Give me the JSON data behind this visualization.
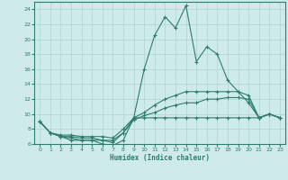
{
  "xlabel": "Humidex (Indice chaleur)",
  "x": [
    0,
    1,
    2,
    3,
    4,
    5,
    6,
    7,
    8,
    9,
    10,
    11,
    12,
    13,
    14,
    15,
    16,
    17,
    18,
    19,
    20,
    21,
    22,
    23
  ],
  "line1": [
    9.0,
    7.5,
    7.0,
    6.5,
    6.5,
    6.5,
    6.0,
    5.8,
    6.5,
    9.5,
    16.0,
    20.5,
    23.0,
    21.5,
    24.5,
    17.0,
    19.0,
    18.0,
    14.5,
    13.0,
    11.5,
    9.5,
    10.0,
    9.5
  ],
  "line2": [
    9.0,
    7.5,
    7.0,
    6.8,
    6.5,
    6.5,
    6.5,
    6.2,
    7.5,
    9.5,
    9.5,
    9.5,
    9.5,
    9.5,
    9.5,
    9.5,
    9.5,
    9.5,
    9.5,
    9.5,
    9.5,
    9.5,
    10.0,
    9.5
  ],
  "line3": [
    9.0,
    7.5,
    7.0,
    7.0,
    6.8,
    6.8,
    6.5,
    6.5,
    7.5,
    9.2,
    9.8,
    10.2,
    10.8,
    11.2,
    11.5,
    11.5,
    12.0,
    12.0,
    12.2,
    12.2,
    12.0,
    9.5,
    10.0,
    9.5
  ],
  "line4": [
    9.0,
    7.5,
    7.2,
    7.2,
    7.0,
    7.0,
    7.0,
    6.8,
    8.0,
    9.5,
    10.2,
    11.2,
    12.0,
    12.5,
    13.0,
    13.0,
    13.0,
    13.0,
    13.0,
    13.0,
    12.5,
    9.5,
    10.0,
    9.5
  ],
  "color": "#2e7d6e",
  "bg_color": "#ceeaea",
  "grid_color": "#afd4d4",
  "ylim": [
    6,
    25
  ],
  "yticks": [
    6,
    8,
    10,
    12,
    14,
    16,
    18,
    20,
    22,
    24
  ],
  "xlim": [
    -0.5,
    23.5
  ]
}
